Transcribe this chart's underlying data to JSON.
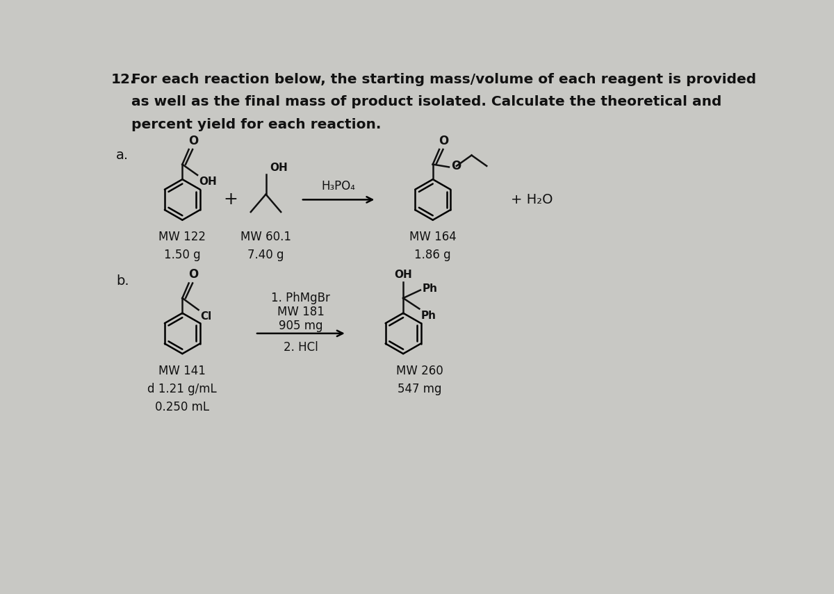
{
  "bg_color": "#c8c8c4",
  "text_color": "#111111",
  "title_num": "12.",
  "title_line1": " For each reaction below, the starting mass/volume of each reagent is provided",
  "title_line2": "      as well as the final mass of product isolated. Calculate the theoretical and",
  "title_line3": "      percent yield for each reaction.",
  "section_a": "a.",
  "section_b": "b.",
  "rxn_a_reagent1_mw": "MW 122",
  "rxn_a_reagent1_mass": "1.50 g",
  "rxn_a_reagent2_mw": "MW 60.1",
  "rxn_a_reagent2_mass": "7.40 g",
  "rxn_a_catalyst": "H₃PO₄",
  "rxn_a_product_mw": "MW 164",
  "rxn_a_product_mass": "1.86 g",
  "rxn_a_byproduct": "+ H₂O",
  "rxn_b_reagent1_mw": "MW 141",
  "rxn_b_reagent1_d": "d 1.21 g/mL",
  "rxn_b_reagent1_vol": "0.250 mL",
  "rxn_b_step1": "1. PhMgBr",
  "rxn_b_step1_mw": "MW 181",
  "rxn_b_step1_mass": "905 mg",
  "rxn_b_step2": "2. HCl",
  "rxn_b_product_mw": "MW 260",
  "rxn_b_product_mass": "547 mg"
}
